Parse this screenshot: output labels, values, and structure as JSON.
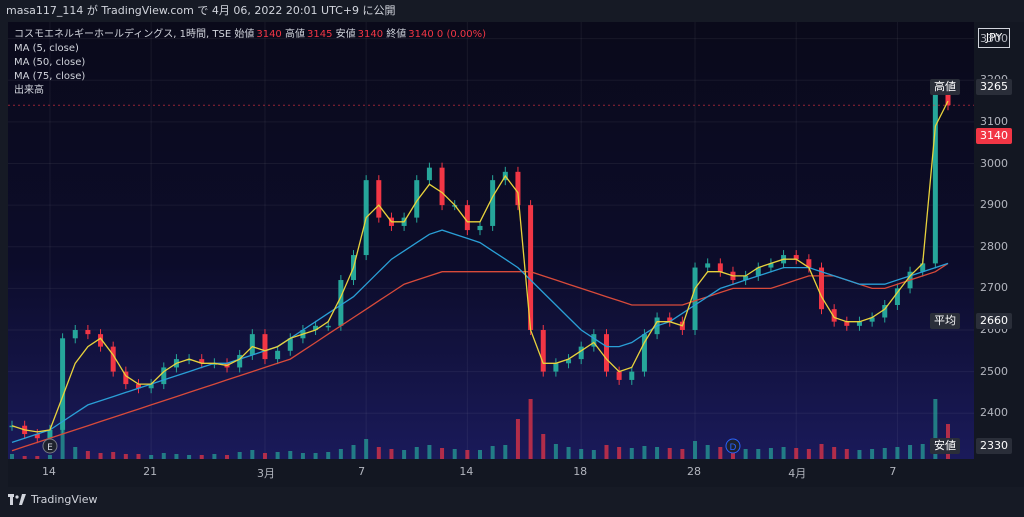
{
  "header": {
    "text": "masa117_114 が TradingView.com で 4月 06, 2022 20:01 UTC+9 に公開"
  },
  "legend": {
    "title": "コスモエネルギーホールディングス, 1時間, TSE",
    "open_label": "始値",
    "open": "3140",
    "high_label": "高値",
    "high": "3145",
    "low_label": "安値",
    "low": "3140",
    "close_label": "終値",
    "close": "3140",
    "change": "0 (0.00%)",
    "ma5": "MA (5, close)",
    "ma50": "MA (50, close)",
    "ma75": "MA (75, close)",
    "volume": "出来高"
  },
  "currency": "JPY",
  "price_tags": {
    "high_label": "高値",
    "high": "3265",
    "current": "3140",
    "avg_label": "平均",
    "avg": "2660",
    "low_label": "安値",
    "low": "2330"
  },
  "markers": {
    "earnings": "E",
    "dividend": "D"
  },
  "footer": {
    "brand": "TradingView"
  },
  "colors": {
    "up": "#26a69a",
    "down": "#f23645",
    "ma5": "#e8d23c",
    "ma50": "#2a9fd6",
    "ma75": "#d84a3a"
  },
  "chart_data": {
    "type": "candlestick",
    "title": "コスモエネルギーホールディングス, 1時間, TSE",
    "ylim": [
      2290,
      3340
    ],
    "y_ticks": [
      2400,
      2500,
      2600,
      2700,
      2800,
      2900,
      3000,
      3100,
      3200,
      3300
    ],
    "x_ticks": [
      "14",
      "21",
      "3月",
      "7",
      "14",
      "18",
      "28",
      "4月",
      "7"
    ],
    "grid": true,
    "legend_position": "top-left",
    "close_price": [
      2370,
      2350,
      2340,
      2360,
      2580,
      2600,
      2590,
      2560,
      2500,
      2470,
      2460,
      2470,
      2510,
      2530,
      2530,
      2520,
      2520,
      2510,
      2540,
      2590,
      2530,
      2550,
      2580,
      2600,
      2610,
      2610,
      2720,
      2780,
      2960,
      2870,
      2850,
      2870,
      2960,
      2990,
      2900,
      2900,
      2840,
      2850,
      2960,
      2980,
      2900,
      2600,
      2500,
      2520,
      2530,
      2560,
      2590,
      2500,
      2480,
      2500,
      2590,
      2630,
      2620,
      2600,
      2750,
      2760,
      2740,
      2720,
      2730,
      2750,
      2760,
      2780,
      2770,
      2750,
      2650,
      2620,
      2610,
      2620,
      2630,
      2660,
      2700,
      2740,
      2760,
      3170,
      3140
    ],
    "ma5": [
      2370,
      2360,
      2355,
      2360,
      2440,
      2520,
      2560,
      2580,
      2540,
      2490,
      2470,
      2470,
      2500,
      2520,
      2530,
      2520,
      2520,
      2515,
      2530,
      2560,
      2550,
      2560,
      2580,
      2590,
      2600,
      2620,
      2680,
      2750,
      2870,
      2900,
      2860,
      2860,
      2910,
      2950,
      2930,
      2900,
      2860,
      2860,
      2920,
      2970,
      2930,
      2600,
      2520,
      2520,
      2530,
      2550,
      2570,
      2530,
      2500,
      2510,
      2570,
      2620,
      2620,
      2610,
      2700,
      2740,
      2740,
      2730,
      2730,
      2750,
      2760,
      2770,
      2770,
      2750,
      2680,
      2630,
      2620,
      2620,
      2630,
      2650,
      2690,
      2730,
      2760,
      3090,
      3150
    ],
    "ma50": [
      2330,
      2340,
      2350,
      2360,
      2380,
      2400,
      2420,
      2430,
      2440,
      2450,
      2460,
      2470,
      2480,
      2490,
      2500,
      2510,
      2520,
      2520,
      2530,
      2540,
      2550,
      2560,
      2580,
      2600,
      2620,
      2640,
      2660,
      2680,
      2710,
      2740,
      2770,
      2790,
      2810,
      2830,
      2840,
      2830,
      2820,
      2810,
      2790,
      2770,
      2750,
      2720,
      2690,
      2660,
      2630,
      2600,
      2580,
      2560,
      2560,
      2570,
      2590,
      2610,
      2620,
      2640,
      2660,
      2680,
      2700,
      2710,
      2720,
      2730,
      2740,
      2750,
      2750,
      2750,
      2740,
      2730,
      2720,
      2710,
      2710,
      2710,
      2720,
      2730,
      2740,
      2750,
      2760
    ],
    "ma75": [
      2310,
      2320,
      2330,
      2340,
      2350,
      2360,
      2370,
      2380,
      2390,
      2400,
      2410,
      2420,
      2430,
      2440,
      2450,
      2460,
      2470,
      2480,
      2490,
      2500,
      2510,
      2520,
      2530,
      2550,
      2570,
      2590,
      2610,
      2630,
      2650,
      2670,
      2690,
      2710,
      2720,
      2730,
      2740,
      2740,
      2740,
      2740,
      2740,
      2740,
      2740,
      2740,
      2730,
      2720,
      2710,
      2700,
      2690,
      2680,
      2670,
      2660,
      2660,
      2660,
      2660,
      2660,
      2670,
      2680,
      2690,
      2700,
      2700,
      2700,
      2700,
      2710,
      2720,
      2730,
      2730,
      2730,
      2720,
      2710,
      2700,
      2700,
      2710,
      2720,
      2730,
      2740,
      2760
    ],
    "volume": [
      5,
      3,
      3,
      4,
      30,
      12,
      8,
      6,
      7,
      5,
      5,
      4,
      6,
      5,
      4,
      4,
      5,
      4,
      7,
      9,
      6,
      7,
      8,
      6,
      6,
      7,
      10,
      14,
      20,
      12,
      10,
      9,
      12,
      14,
      11,
      10,
      9,
      9,
      13,
      14,
      40,
      60,
      25,
      15,
      12,
      10,
      9,
      14,
      12,
      11,
      13,
      12,
      11,
      10,
      18,
      14,
      12,
      11,
      10,
      10,
      11,
      12,
      11,
      10,
      15,
      12,
      10,
      9,
      10,
      11,
      12,
      14,
      15,
      60,
      35
    ]
  }
}
